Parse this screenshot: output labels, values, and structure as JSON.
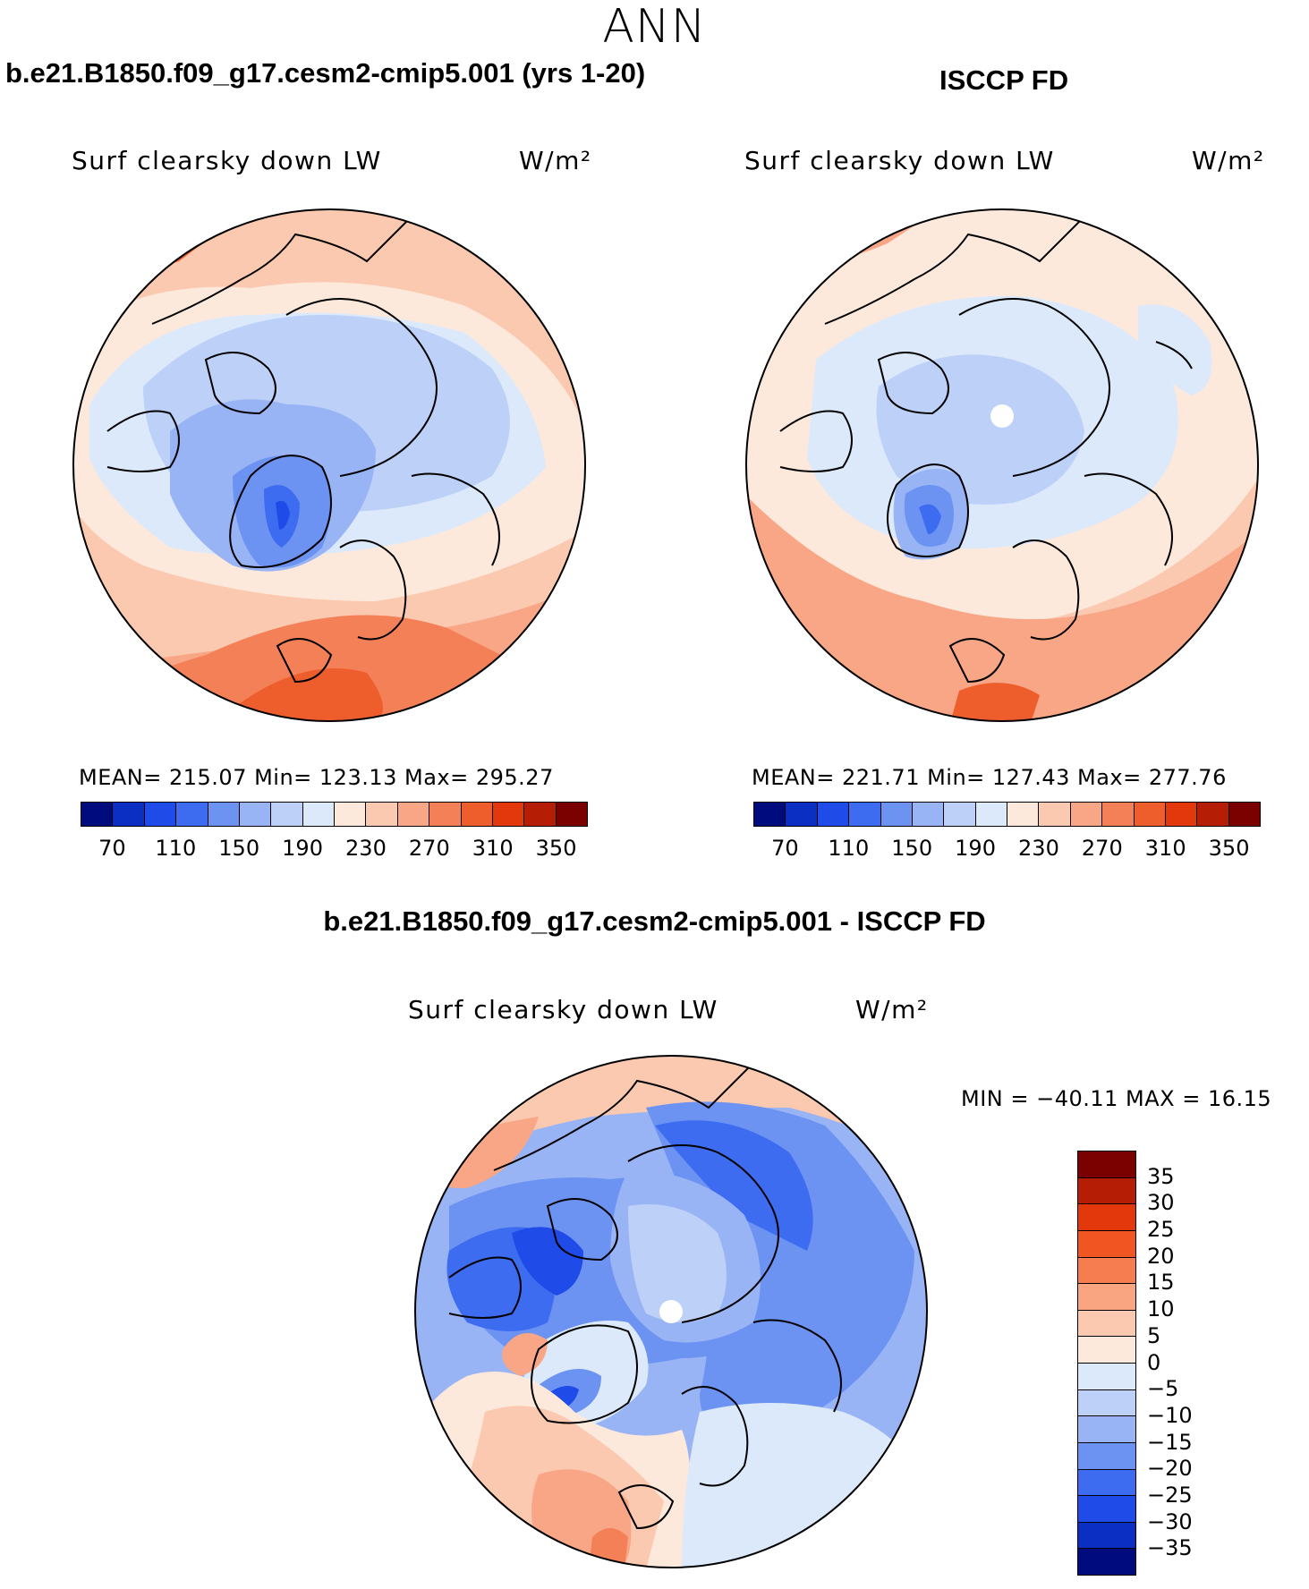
{
  "figure": {
    "season": "ANN",
    "difference_title": "b.e21.B1850.f09_g17.cesm2-cmip5.001 - ISCCP FD"
  },
  "panels": [
    {
      "title": "b.e21.B1850.f09_g17.cesm2-cmip5.001 (yrs 1-20)",
      "variable": "Surf clearsky down LW",
      "units": "W/m²",
      "stats": "MEAN= 215.07   Min= 123.13   Max= 295.27",
      "mean": 215.07,
      "min": 123.13,
      "max": 295.27
    },
    {
      "title": "ISCCP FD",
      "variable": "Surf clearsky down LW",
      "units": "W/m²",
      "stats": "MEAN= 221.71   Min= 127.43   Max= 277.76",
      "mean": 221.71,
      "min": 127.43,
      "max": 277.76
    },
    {
      "title": "b.e21.B1850.f09_g17.cesm2-cmip5.001 - ISCCP FD",
      "variable": "Surf clearsky down LW",
      "units": "W/m²",
      "stats": "MIN = −40.11 MAX =   16.15",
      "min": -40.11,
      "max": 16.15
    }
  ],
  "abs_colorbar": {
    "labels": [
      "70",
      "110",
      "150",
      "190",
      "230",
      "270",
      "310",
      "350"
    ],
    "colors": [
      "#000c7e",
      "#0a2fc2",
      "#1f4be8",
      "#3d6cf0",
      "#6c93f2",
      "#98b4f5",
      "#bdd0f8",
      "#dce9fb",
      "#fde9dc",
      "#fbc8b0",
      "#f8a685",
      "#f48058",
      "#ee5d2c",
      "#e2380b",
      "#b61d05",
      "#7b0000"
    ]
  },
  "diff_colorbar": {
    "labels": [
      "35",
      "30",
      "25",
      "20",
      "15",
      "10",
      "5",
      "0",
      "−5",
      "−10",
      "−15",
      "−20",
      "−25",
      "−30",
      "−35"
    ],
    "colors": [
      "#7b0000",
      "#b61d05",
      "#e2380b",
      "#f15522",
      "#f57d4f",
      "#f9a581",
      "#fbc8b0",
      "#fde9dc",
      "#dce9fb",
      "#bdd0f8",
      "#98b4f5",
      "#6c93f2",
      "#3d6cf0",
      "#1f4be8",
      "#0a2fc2",
      "#000c7e"
    ]
  },
  "colors": {
    "background": "#ffffff",
    "coastline": "#000000"
  }
}
